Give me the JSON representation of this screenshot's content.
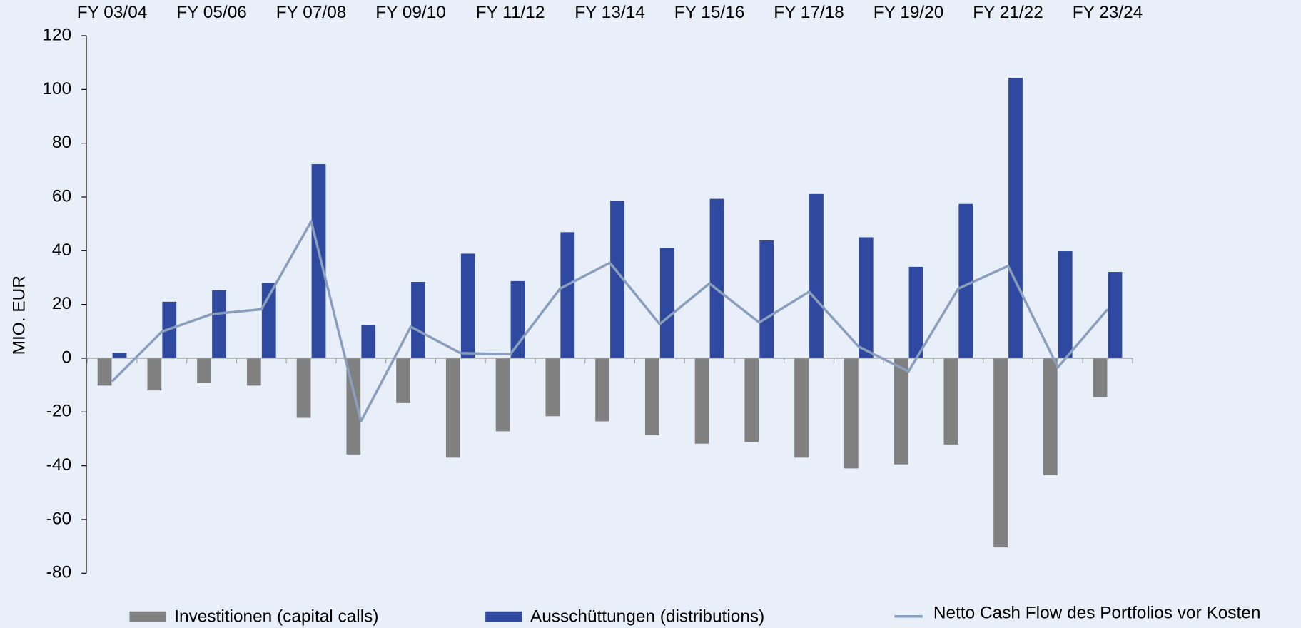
{
  "chart_data": {
    "type": "bar",
    "y_label": "MIO. EUR",
    "categories": [
      "FY 03/04",
      null,
      "FY 05/06",
      null,
      "FY 07/08",
      null,
      "FY 09/10",
      null,
      "FY 11/12",
      null,
      "FY 13/14",
      null,
      "FY 15/16",
      null,
      "FY 17/18",
      null,
      "FY 19/20",
      null,
      "FY 21/22",
      null,
      "FY 23/24"
    ],
    "series": [
      {
        "name": "Investitionen (capital calls)",
        "color": "#808080",
        "type": "bar",
        "values": [
          -10.2,
          -12,
          -9.3,
          -10.2,
          -22.2,
          -35.8,
          -16.7,
          -37,
          -27.2,
          -21.6,
          -23.5,
          -28.7,
          -31.8,
          -31.2,
          -37,
          -41,
          -39.5,
          -32.1,
          -70.4,
          -43.5,
          -14.5
        ]
      },
      {
        "name": "Ausschüttungen (distributions)",
        "color": "#2f48a0",
        "type": "bar",
        "values": [
          2,
          21,
          25.3,
          28,
          72.2,
          12.3,
          28.4,
          38.9,
          28.7,
          46.9,
          58.6,
          41,
          59.3,
          43.8,
          61.1,
          45,
          34,
          57.4,
          104.3,
          39.8,
          32.1
        ]
      },
      {
        "name": "Netto Cash Flow des Portfolios vor Kosten",
        "color": "#8a9fbd",
        "type": "line",
        "values": [
          -8.6,
          9.9,
          16.4,
          18.2,
          50.9,
          -23.5,
          11.7,
          1.9,
          1.5,
          25.9,
          35.5,
          12.7,
          27.8,
          13.3,
          24.7,
          4.3,
          -4.9,
          25.9,
          34.3,
          -3.4,
          18.2
        ]
      }
    ],
    "ylim": [
      -80,
      120
    ],
    "yticks": [
      -80,
      -60,
      -40,
      -20,
      0,
      20,
      40,
      60,
      80,
      100,
      120
    ],
    "grid": false,
    "legend": "bottom"
  }
}
